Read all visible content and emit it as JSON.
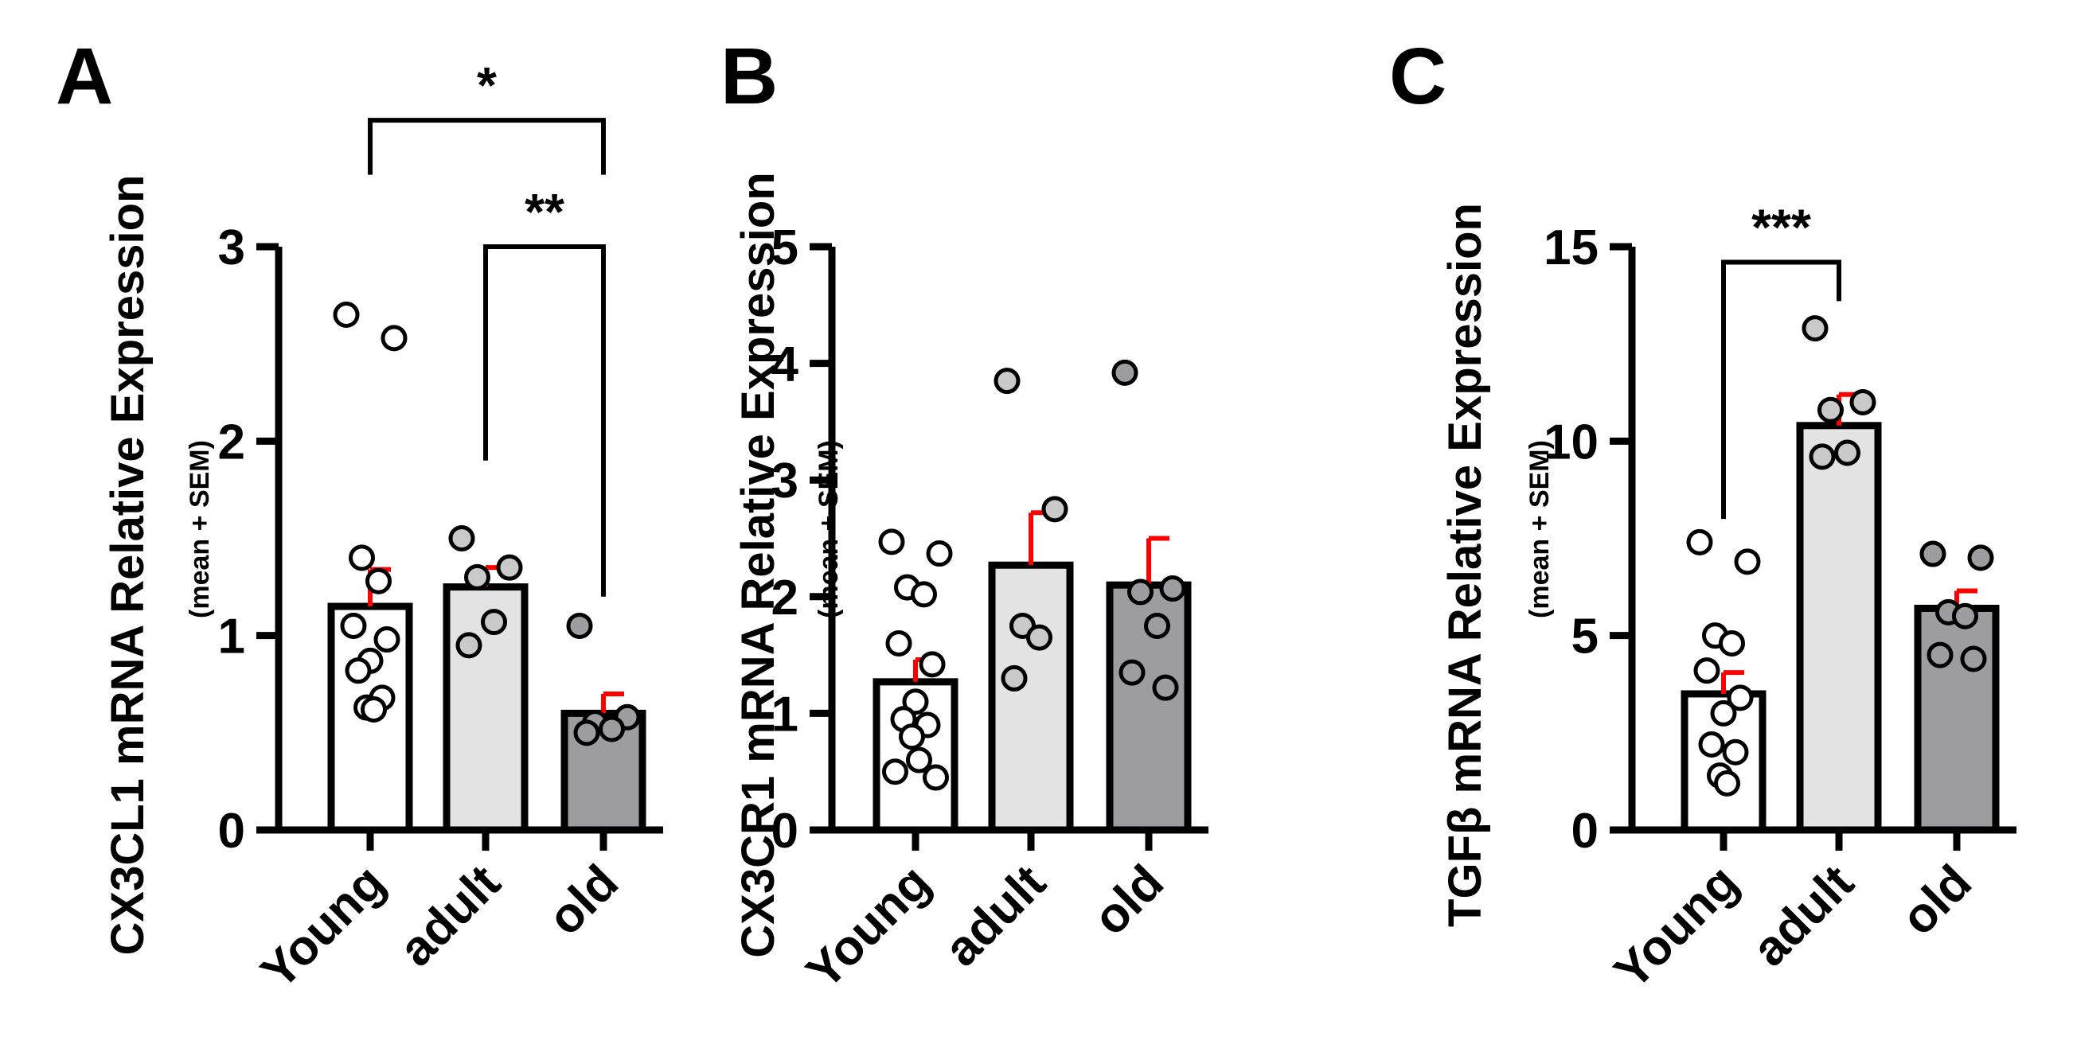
{
  "colors": {
    "axis": "#000000",
    "error_bar": "#ff0000",
    "young_fill": "#ffffff",
    "adult_fill": "#e3e3e3",
    "old_fill": "#9d9d9f",
    "adult_dot": "#c9c9c9",
    "old_dot": "#9d9d9f"
  },
  "chart_data": [
    {
      "panel_label": "A",
      "type": "bar",
      "ylabel": "CX3CL1 mRNA Relative Expression",
      "ylabel_sub": "(mean + SEM)",
      "ylim": [
        0,
        3
      ],
      "yticks": [
        "0",
        "1",
        "2",
        "3"
      ],
      "categories": [
        "Young",
        "adult",
        "old"
      ],
      "means": [
        1.15,
        1.25,
        0.6
      ],
      "sem": [
        0.19,
        0.1,
        0.1
      ],
      "points": [
        [
          2.65,
          2.53,
          1.4,
          1.28,
          1.05,
          0.98,
          0.87,
          0.82,
          0.68,
          0.63,
          0.62
        ],
        [
          1.5,
          1.35,
          1.3,
          1.07,
          0.95
        ],
        [
          1.05,
          0.58,
          0.55,
          0.52,
          0.5
        ]
      ],
      "significance": [
        {
          "from": 0,
          "to": 2,
          "label": "*",
          "y": 3.65
        },
        {
          "from": 1,
          "to": 2,
          "label": "**",
          "y": 3.0
        }
      ]
    },
    {
      "panel_label": "B",
      "type": "bar",
      "ylabel": "CX3CR1 mRNA Relative Expression",
      "ylabel_sub": "(mean + SEM)",
      "ylim": [
        0,
        5
      ],
      "yticks": [
        "0",
        "1",
        "2",
        "3",
        "4",
        "5"
      ],
      "categories": [
        "Young",
        "adult",
        "old"
      ],
      "means": [
        1.27,
        2.27,
        2.1
      ],
      "sem": [
        0.19,
        0.45,
        0.4
      ],
      "points": [
        [
          2.47,
          2.37,
          2.08,
          2.02,
          1.6,
          1.42,
          1.1,
          0.95,
          0.9,
          0.8,
          0.6,
          0.5,
          0.45
        ],
        [
          3.85,
          2.75,
          1.75,
          1.65,
          1.3
        ],
        [
          3.92,
          2.07,
          2.04,
          1.75,
          1.35,
          1.22
        ]
      ],
      "significance": []
    },
    {
      "panel_label": "C",
      "type": "bar",
      "ylabel": "TGFβ mRNA Relative Expression",
      "ylabel_sub": "(mean + SEM)",
      "ylim": [
        0,
        15
      ],
      "yticks": [
        "0",
        "5",
        "10",
        "15"
      ],
      "categories": [
        "Young",
        "adult",
        "old"
      ],
      "means": [
        3.5,
        10.4,
        5.7
      ],
      "sem": [
        0.55,
        0.8,
        0.45
      ],
      "points": [
        [
          7.4,
          6.9,
          5.0,
          4.8,
          4.1,
          3.4,
          3.0,
          2.2,
          2.0,
          1.4,
          1.2
        ],
        [
          12.9,
          11.0,
          10.8,
          9.7,
          9.6
        ],
        [
          7.1,
          7.0,
          5.6,
          5.5,
          4.5,
          4.4
        ]
      ],
      "significance": [
        {
          "from": 0,
          "to": 1,
          "label": "***",
          "y": 14.6
        }
      ]
    }
  ]
}
